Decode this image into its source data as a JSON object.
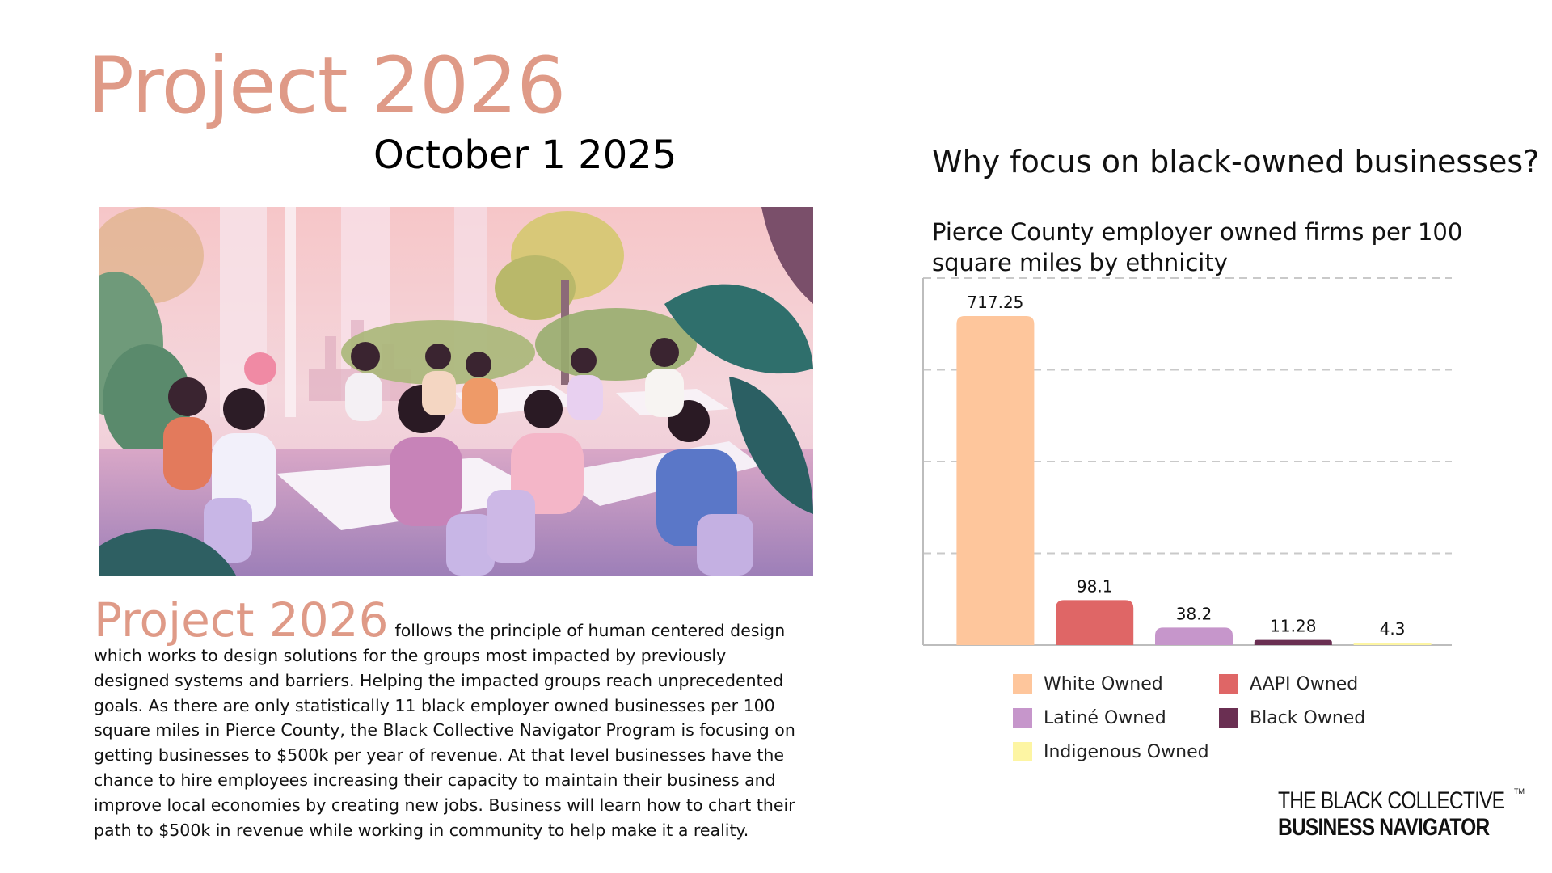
{
  "page": {
    "title": "Project 2026",
    "date": "October 1 2025"
  },
  "description": {
    "lead": "Project 2026",
    "body": "follows the principle of human centered design which works to design solutions for the groups most impacted by previously designed systems and barriers. Helping the impacted groups reach unprecedented goals. As there are only statistically 11 black employer owned businesses per 100 square miles in Pierce County, the Black Collective Navigator Program is focusing on getting businesses to $500k per year of revenue. At that level businesses have the chance to hire employees increasing their capacity to maintain their business and improve local economies by creating new jobs. Business will learn how to chart their path to $500k in revenue while working in community to help make it a reality."
  },
  "chart_heading": "Why focus on black-owned businesses?",
  "chart_data": {
    "type": "bar",
    "title": "Pierce County employer owned firms per 100 square miles by ethnicity",
    "categories": [
      "White Owned",
      "AAPI Owned",
      "Latiné Owned",
      "Black Owned",
      "Indigenous Owned"
    ],
    "values": [
      717.25,
      98.1,
      38.2,
      11.28,
      4.3
    ],
    "value_labels": [
      "717.25",
      "98.1",
      "38.2",
      "11.28",
      "4.3"
    ],
    "colors": [
      "#fec69c",
      "#df6666",
      "#c696cb",
      "#6a2f52",
      "#fdf5a3"
    ],
    "ylim": [
      0,
      800
    ],
    "grid": true,
    "legend": "bottom"
  },
  "logo": {
    "line1": "THE BLACK COLLECTIVE",
    "line2": "BUSINESS NAVIGATOR",
    "tm": "TM"
  }
}
